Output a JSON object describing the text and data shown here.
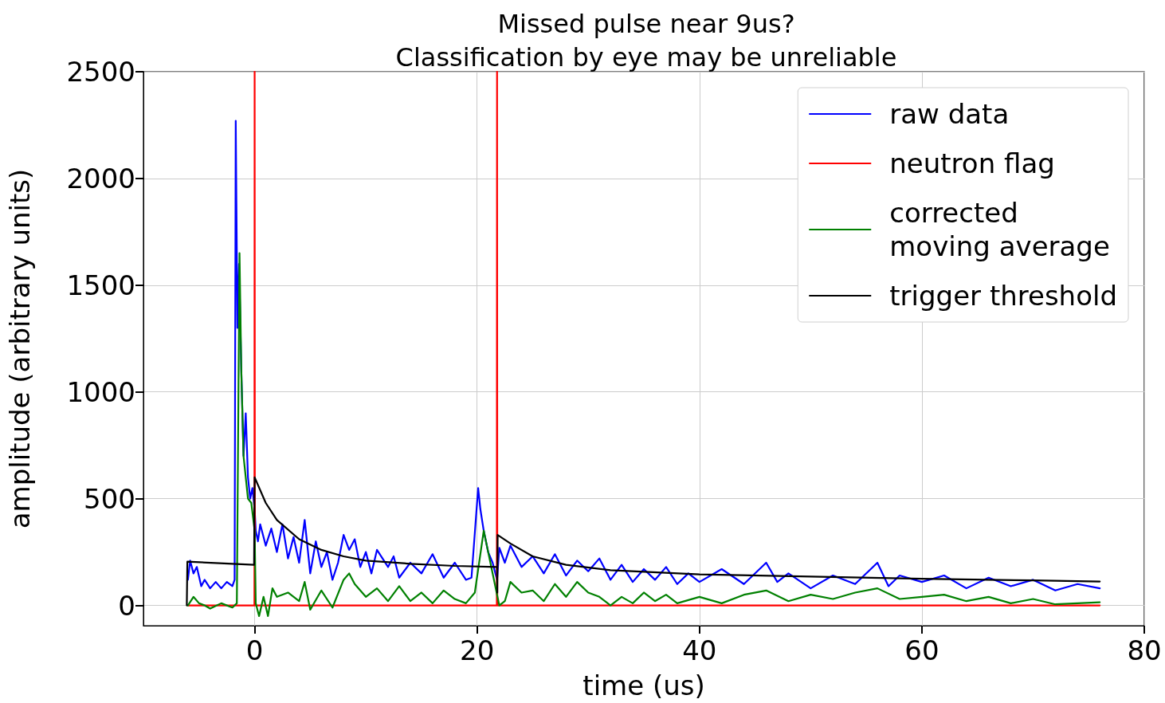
{
  "chart_data": {
    "type": "line",
    "title": "Missed pulse near 9us?\nClassification by eye may be unreliable",
    "xlabel": "time (us)",
    "ylabel": "amplitude (arbitrary units)",
    "xlim": [
      -10,
      80
    ],
    "xticks": [
      0,
      20,
      40,
      60,
      80
    ],
    "ylim": [
      -95,
      2500
    ],
    "yticks": [
      0,
      500,
      1000,
      1500,
      2000,
      2500
    ],
    "grid": true,
    "legend": "top right",
    "marker": "none",
    "line_style": "solid",
    "series": [
      {
        "name": "raw data",
        "color": "#0000ff",
        "x": [
          -6,
          -5.8,
          -5.5,
          -5.2,
          -4.8,
          -4.5,
          -4,
          -3.5,
          -3,
          -2.5,
          -2,
          -1.8,
          -1.75,
          -1.7,
          -1.55,
          -1.4,
          -1.2,
          -1,
          -0.8,
          -0.6,
          -0.4,
          -0.2,
          0,
          0.1,
          0.3,
          0.5,
          1,
          1.5,
          2,
          2.5,
          3,
          3.5,
          4,
          4.5,
          5,
          5.5,
          6,
          6.5,
          7,
          7.5,
          8,
          8.5,
          9,
          9.5,
          10,
          10.5,
          11,
          12,
          12.5,
          13,
          14,
          15,
          16,
          17,
          18,
          19,
          19.5,
          20.1,
          20.3,
          20.6,
          21,
          21.4,
          21.8,
          22,
          22.5,
          23,
          24,
          25,
          26,
          27,
          28,
          29,
          30,
          31,
          32,
          33,
          34,
          35,
          36,
          37,
          38,
          39,
          40,
          42,
          44,
          46,
          47,
          48,
          50,
          52,
          54,
          56,
          57,
          58,
          60,
          62,
          64,
          66,
          68,
          70,
          72,
          74,
          76
        ],
        "values": [
          120,
          210,
          150,
          180,
          90,
          120,
          80,
          110,
          80,
          110,
          90,
          120,
          120,
          2270,
          1300,
          1600,
          1100,
          700,
          900,
          600,
          500,
          550,
          450,
          350,
          300,
          380,
          280,
          360,
          250,
          380,
          220,
          320,
          200,
          400,
          150,
          300,
          180,
          250,
          120,
          200,
          330,
          260,
          310,
          180,
          250,
          150,
          260,
          180,
          230,
          130,
          200,
          150,
          240,
          130,
          200,
          120,
          130,
          550,
          450,
          350,
          250,
          200,
          120,
          270,
          200,
          280,
          180,
          230,
          150,
          240,
          140,
          210,
          160,
          220,
          120,
          190,
          110,
          170,
          120,
          180,
          100,
          150,
          110,
          170,
          100,
          200,
          110,
          150,
          80,
          140,
          100,
          200,
          90,
          140,
          110,
          140,
          80,
          130,
          90,
          120,
          70,
          100,
          80
        ]
      },
      {
        "name": "neutron flag",
        "color": "#ff0000",
        "x": [
          -6,
          -0.02,
          0,
          0.02,
          21.78,
          21.8,
          21.82,
          76
        ],
        "values": [
          0,
          0,
          2500,
          0,
          0,
          2500,
          0,
          0
        ]
      },
      {
        "name": "corrected\nmoving average",
        "color": "#008000",
        "x": [
          -6,
          -5.5,
          -5,
          -4.5,
          -4,
          -3,
          -2,
          -1.6,
          -1.36,
          -1.2,
          -1,
          -0.6,
          -0.3,
          0,
          0.1,
          0.4,
          0.8,
          1.2,
          1.6,
          2,
          3,
          4,
          4.5,
          5,
          6,
          7,
          8,
          8.5,
          9,
          10,
          11,
          12,
          13,
          14,
          15,
          16,
          17,
          18,
          19,
          19.8,
          20.6,
          21.2,
          21.8,
          22,
          22.5,
          23,
          24,
          25,
          26,
          27,
          28,
          29,
          30,
          31,
          32,
          33,
          34,
          35,
          36,
          37,
          38,
          40,
          42,
          44,
          46,
          48,
          50,
          52,
          54,
          56,
          58,
          60,
          62,
          64,
          66,
          68,
          70,
          72,
          74,
          76
        ],
        "values": [
          0,
          40,
          10,
          0,
          -15,
          10,
          -10,
          10,
          1650,
          1100,
          700,
          500,
          480,
          350,
          10,
          -50,
          40,
          -50,
          80,
          40,
          60,
          20,
          110,
          -20,
          70,
          -10,
          120,
          150,
          100,
          40,
          80,
          20,
          90,
          20,
          60,
          10,
          70,
          30,
          10,
          60,
          350,
          200,
          50,
          0,
          20,
          110,
          60,
          70,
          20,
          100,
          40,
          110,
          60,
          40,
          0,
          40,
          10,
          60,
          20,
          50,
          10,
          40,
          10,
          50,
          70,
          20,
          50,
          30,
          60,
          80,
          30,
          40,
          50,
          20,
          40,
          10,
          30,
          5,
          10,
          15
        ]
      },
      {
        "name": "trigger threshold",
        "color": "#000000",
        "x": [
          -6.1,
          -6.05,
          -0.05,
          0,
          1,
          2,
          4,
          6,
          8,
          10,
          14,
          18,
          21.8,
          21.82,
          21.85,
          23,
          25,
          28,
          32,
          40,
          50,
          60,
          70,
          76
        ],
        "values": [
          0,
          205,
          190,
          600,
          480,
          400,
          310,
          260,
          230,
          210,
          195,
          185,
          180,
          60,
          330,
          290,
          230,
          190,
          165,
          145,
          135,
          125,
          117,
          112
        ]
      }
    ]
  }
}
